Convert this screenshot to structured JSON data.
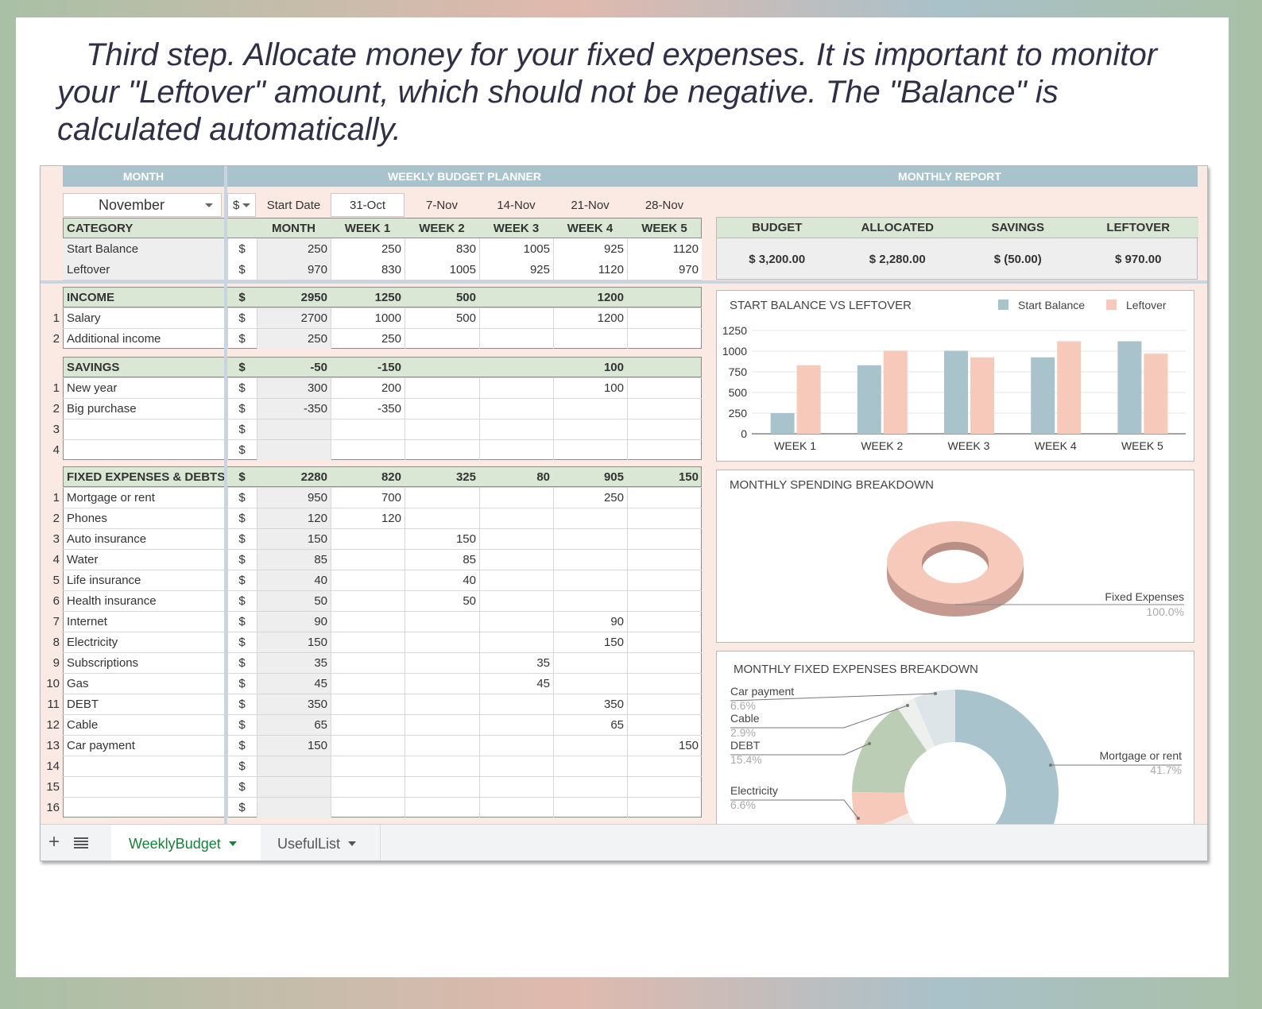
{
  "instructions": "Third step.  Allocate money for your fixed expenses. It is important to monitor your \"Leftover\" amount, which should not be negative. The \"Balance\" is calculated automatically.",
  "headers": {
    "month": "MONTH",
    "planner": "WEEKLY BUDGET PLANNER",
    "report": "MONTHLY REPORT"
  },
  "controls": {
    "month": "November",
    "currency": "$",
    "start_date_label": "Start Date",
    "start_date": "31-Oct",
    "dates": [
      "7-Nov",
      "14-Nov",
      "21-Nov",
      "28-Nov"
    ]
  },
  "columns": [
    "CATEGORY",
    "MONTH",
    "WEEK 1",
    "WEEK 2",
    "WEEK 3",
    "WEEK 4",
    "WEEK 5"
  ],
  "dollar": "$",
  "balance_rows": [
    {
      "label": "Start Balance",
      "cells": [
        "250",
        "250",
        "830",
        "1005",
        "925",
        "1120"
      ]
    },
    {
      "label": "Leftover",
      "cells": [
        "970",
        "830",
        "1005",
        "925",
        "1120",
        "970"
      ]
    }
  ],
  "sections": [
    {
      "title": "INCOME",
      "totals": [
        "2950",
        "1250",
        "500",
        "",
        "1200",
        ""
      ],
      "rows": [
        {
          "n": "1",
          "label": "Salary",
          "cells": [
            "2700",
            "1000",
            "500",
            "",
            "1200",
            ""
          ]
        },
        {
          "n": "2",
          "label": "Additional income",
          "cells": [
            "250",
            "250",
            "",
            "",
            "",
            ""
          ]
        }
      ]
    },
    {
      "title": "SAVINGS",
      "totals": [
        "-50",
        "-150",
        "",
        "",
        "100",
        ""
      ],
      "rows": [
        {
          "n": "1",
          "label": "New year",
          "cells": [
            "300",
            "200",
            "",
            "",
            "100",
            ""
          ]
        },
        {
          "n": "2",
          "label": "Big purchase",
          "cells": [
            "-350",
            "-350",
            "",
            "",
            "",
            ""
          ]
        },
        {
          "n": "3",
          "label": "",
          "cells": [
            "",
            "",
            "",
            "",
            "",
            ""
          ]
        },
        {
          "n": "4",
          "label": "",
          "cells": [
            "",
            "",
            "",
            "",
            "",
            ""
          ]
        }
      ]
    },
    {
      "title": "FIXED EXPENSES & DEBTS",
      "totals": [
        "2280",
        "820",
        "325",
        "80",
        "905",
        "150"
      ],
      "rows": [
        {
          "n": "1",
          "label": "Mortgage or rent",
          "cells": [
            "950",
            "700",
            "",
            "",
            "250",
            ""
          ]
        },
        {
          "n": "2",
          "label": "Phones",
          "cells": [
            "120",
            "120",
            "",
            "",
            "",
            ""
          ]
        },
        {
          "n": "3",
          "label": "Auto insurance",
          "cells": [
            "150",
            "",
            "150",
            "",
            "",
            ""
          ]
        },
        {
          "n": "4",
          "label": "Water",
          "cells": [
            "85",
            "",
            "85",
            "",
            "",
            ""
          ]
        },
        {
          "n": "5",
          "label": "Life insurance",
          "cells": [
            "40",
            "",
            "40",
            "",
            "",
            ""
          ]
        },
        {
          "n": "6",
          "label": "Health insurance",
          "cells": [
            "50",
            "",
            "50",
            "",
            "",
            ""
          ]
        },
        {
          "n": "7",
          "label": "Internet",
          "cells": [
            "90",
            "",
            "",
            "",
            "90",
            ""
          ]
        },
        {
          "n": "8",
          "label": "Electricity",
          "cells": [
            "150",
            "",
            "",
            "",
            "150",
            ""
          ]
        },
        {
          "n": "9",
          "label": "Subscriptions",
          "cells": [
            "35",
            "",
            "",
            "35",
            "",
            ""
          ]
        },
        {
          "n": "10",
          "label": "Gas",
          "cells": [
            "45",
            "",
            "",
            "45",
            "",
            ""
          ]
        },
        {
          "n": "11",
          "label": "DEBT",
          "cells": [
            "350",
            "",
            "",
            "",
            "350",
            ""
          ]
        },
        {
          "n": "12",
          "label": "Cable",
          "cells": [
            "65",
            "",
            "",
            "",
            "65",
            ""
          ]
        },
        {
          "n": "13",
          "label": "Car payment",
          "cells": [
            "150",
            "",
            "",
            "",
            "",
            "150"
          ]
        },
        {
          "n": "14",
          "label": "",
          "cells": [
            "",
            "",
            "",
            "",
            "",
            ""
          ]
        },
        {
          "n": "15",
          "label": "",
          "cells": [
            "",
            "",
            "",
            "",
            "",
            ""
          ]
        },
        {
          "n": "16",
          "label": "",
          "cells": [
            "",
            "",
            "",
            "",
            "",
            ""
          ]
        }
      ]
    }
  ],
  "report": {
    "headers": [
      "BUDGET",
      "ALLOCATED",
      "SAVINGS",
      "LEFTOVER"
    ],
    "values": [
      "$  3,200.00",
      "$  2,280.00",
      "$  (50.00)",
      "$  970.00"
    ]
  },
  "chart_data": [
    {
      "type": "bar",
      "title": "START BALANCE VS LEFTOVER",
      "categories": [
        "WEEK 1",
        "WEEK 2",
        "WEEK 3",
        "WEEK 4",
        "WEEK 5"
      ],
      "series": [
        {
          "name": "Start Balance",
          "values": [
            250,
            830,
            1005,
            925,
            1120
          ],
          "color": "#a9c3cc"
        },
        {
          "name": "Leftover",
          "values": [
            830,
            1005,
            925,
            1120,
            970
          ],
          "color": "#f6c9bb"
        }
      ],
      "ylim": [
        0,
        1250
      ],
      "yticks": [
        "1250",
        "1000",
        "750",
        "500",
        "250",
        "0"
      ],
      "legend": "top-right"
    },
    {
      "type": "pie",
      "title": "MONTHLY SPENDING BREAKDOWN",
      "labels": [
        "Fixed Expenses"
      ],
      "values": [
        100.0
      ],
      "pct_labels": [
        "100.0%"
      ],
      "colors": [
        "#f6c9bb"
      ]
    },
    {
      "type": "pie",
      "title": "MONTHLY FIXED EXPENSES BREAKDOWN",
      "labels": [
        "Mortgage or rent",
        "Car payment",
        "Cable",
        "DEBT",
        "Electricity"
      ],
      "values": [
        41.7,
        6.6,
        2.9,
        15.4,
        6.6
      ],
      "pct_labels": [
        "41.7%",
        "6.6%",
        "2.9%",
        "15.4%",
        "6.6%"
      ],
      "colors": [
        "#a9c3cc",
        "#dde5e8",
        "#eef0ee",
        "#bccdb5",
        "#f6c9bb"
      ]
    }
  ],
  "tabs": [
    "WeeklyBudget",
    "UsefulList"
  ]
}
